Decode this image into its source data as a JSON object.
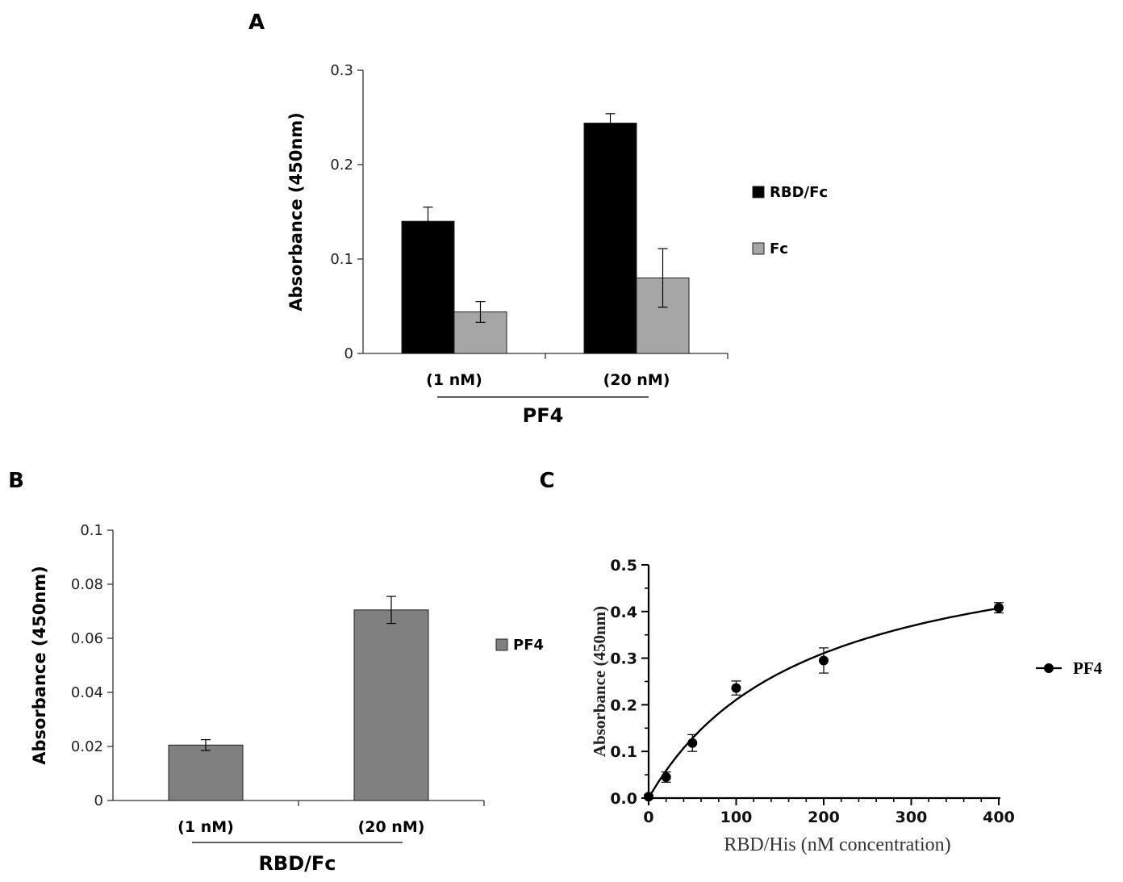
{
  "chart_data": [
    {
      "id": "A",
      "panel_label": "A",
      "type": "bar",
      "ylabel": "Absorbance (450nm)",
      "ylim": [
        0,
        0.3
      ],
      "yticks": [
        "0",
        "0.1",
        "0.2",
        "0.3"
      ],
      "categories": [
        "(1 nM)",
        "(20 nM)"
      ],
      "group_label": "PF4",
      "series": [
        {
          "name": "RBD/Fc",
          "color": "#000000",
          "values": [
            0.14,
            0.244
          ],
          "errors": [
            0.015,
            0.01
          ]
        },
        {
          "name": "Fc",
          "color": "#a6a6a6",
          "values": [
            0.044,
            0.08
          ],
          "errors": [
            0.011,
            0.031
          ]
        }
      ]
    },
    {
      "id": "B",
      "panel_label": "B",
      "type": "bar",
      "ylabel": "Absorbance (450nm)",
      "ylim": [
        0,
        0.1
      ],
      "yticks": [
        "0",
        "0.02",
        "0.04",
        "0.06",
        "0.08",
        "0.1"
      ],
      "categories": [
        "(1 nM)",
        "(20 nM)"
      ],
      "group_label": "RBD/Fc",
      "series": [
        {
          "name": "PF4",
          "color": "#808080",
          "values": [
            0.0205,
            0.0705
          ],
          "errors": [
            0.002,
            0.005
          ]
        }
      ]
    },
    {
      "id": "C",
      "panel_label": "C",
      "type": "scatter",
      "xlabel": "RBD/His (nM concentration)",
      "ylabel": "Absorbance (450nm)",
      "xlim": [
        0,
        400
      ],
      "ylim": [
        0,
        0.5
      ],
      "xticks": [
        "0",
        "100",
        "200",
        "300",
        "400"
      ],
      "yticks": [
        "0.0",
        "0.1",
        "0.2",
        "0.3",
        "0.4",
        "0.5"
      ],
      "series": [
        {
          "name": "PF4",
          "color": "#000000",
          "x": [
            0,
            20,
            50,
            100,
            200,
            400
          ],
          "y": [
            0.003,
            0.045,
            0.118,
            0.236,
            0.295,
            0.408
          ],
          "errors": [
            0.004,
            0.011,
            0.018,
            0.015,
            0.027,
            0.011
          ],
          "fit": {
            "model": "one-site binding",
            "bmax": 0.59,
            "kd": 180
          }
        }
      ]
    }
  ]
}
